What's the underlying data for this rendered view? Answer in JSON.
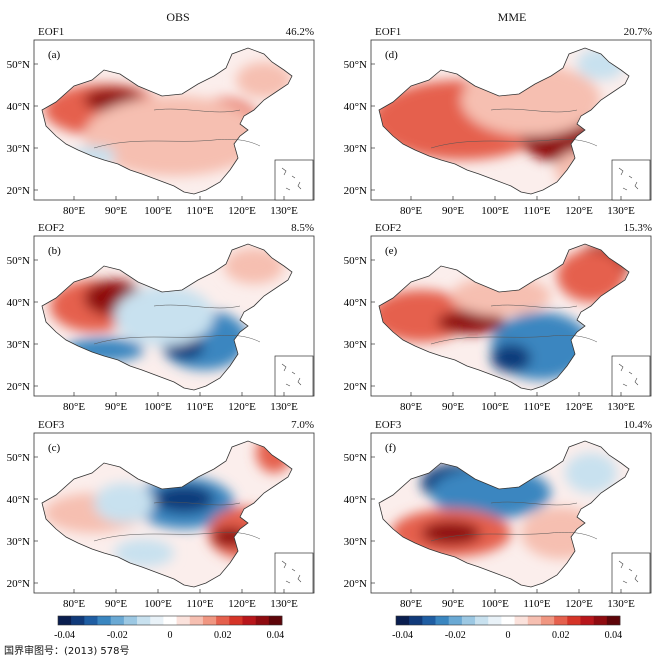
{
  "figure": {
    "columns": [
      {
        "id": "obs",
        "title": "OBS"
      },
      {
        "id": "mme",
        "title": "MME"
      }
    ],
    "lat_ticks": [
      "50°N",
      "40°N",
      "30°N",
      "20°N"
    ],
    "lon_ticks": [
      "80°E",
      "90°E",
      "100°E",
      "110°E",
      "120°E",
      "130°E"
    ],
    "panels": [
      {
        "id": "a",
        "label": "(a)",
        "mode": "EOF1",
        "variance": "46.2%",
        "column": "OBS"
      },
      {
        "id": "b",
        "label": "(b)",
        "mode": "EOF2",
        "variance": "8.5%",
        "column": "OBS"
      },
      {
        "id": "c",
        "label": "(c)",
        "mode": "EOF3",
        "variance": "7.0%",
        "column": "OBS"
      },
      {
        "id": "d",
        "label": "(d)",
        "mode": "EOF1",
        "variance": "20.7%",
        "column": "MME"
      },
      {
        "id": "e",
        "label": "(e)",
        "mode": "EOF2",
        "variance": "15.3%",
        "column": "MME"
      },
      {
        "id": "f",
        "label": "(f)",
        "mode": "EOF3",
        "variance": "10.4%",
        "column": "MME"
      }
    ],
    "colorbar": {
      "tick_labels": [
        "-0.04",
        "-0.02",
        "0",
        "0.02",
        "0.04"
      ],
      "colors": [
        "#0a1e4f",
        "#113a7a",
        "#1f5ea3",
        "#3a86c0",
        "#6aa9d4",
        "#9cc8e3",
        "#c8e1ef",
        "#e9f2f8",
        "#ffffff",
        "#fbe2dc",
        "#f6bfb1",
        "#f09681",
        "#e5604d",
        "#d53427",
        "#b8161b",
        "#8f0b10",
        "#5e0509"
      ]
    },
    "map_colors": {
      "red_dark": "#8f0b10",
      "red_mid": "#e5604d",
      "red_light": "#f6bfb1",
      "blue_dark": "#113a7a",
      "blue_mid": "#3a86c0",
      "blue_light": "#c8e1ef",
      "neutral": "#fbeeec"
    },
    "footnote": "国界审图号：(2013) 578号"
  }
}
